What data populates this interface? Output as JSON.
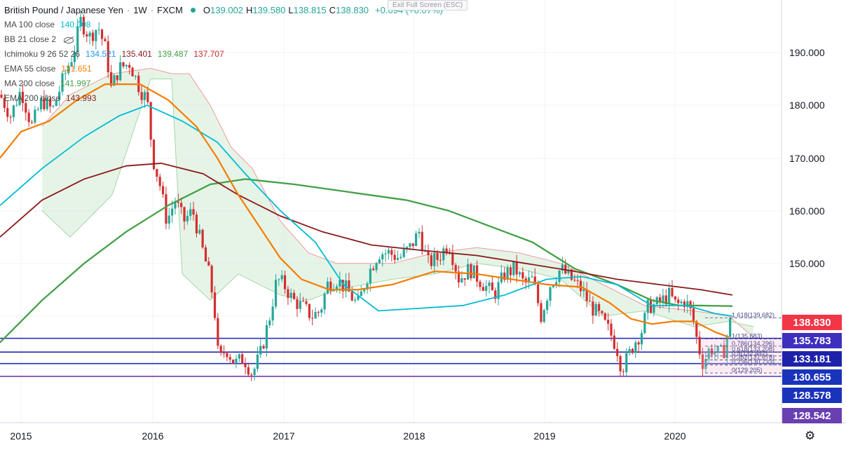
{
  "header": {
    "symbol": "British Pound / Japanese Yen",
    "interval": "1W",
    "exchange": "FXCM",
    "ohlc": [
      {
        "label": "O",
        "value": "139.002"
      },
      {
        "label": "H",
        "value": "139.580"
      },
      {
        "label": "L",
        "value": "138.815"
      },
      {
        "label": "C",
        "value": "138.830"
      }
    ],
    "change": "+0.094 (+0.07%)"
  },
  "exit_fullscreen": "Exit Full Screen (ESC)",
  "indicators": [
    {
      "name": "MA 100 close",
      "values": [
        {
          "v": "140.008",
          "color": "#00bcd4"
        }
      ]
    },
    {
      "name": "BB 21 close 2",
      "values": []
    },
    {
      "name": "Ichimoku 9 26 52 26",
      "values": [
        {
          "v": "134.521",
          "color": "#2196f3"
        },
        {
          "v": "135.401",
          "color": "#8b1a1a"
        },
        {
          "v": "139.487",
          "color": "#43a047"
        },
        {
          "v": "137.707",
          "color": "#c62828"
        }
      ]
    },
    {
      "name": "EMA 55 close",
      "values": [
        {
          "v": "131.651",
          "color": "#f57c00"
        }
      ]
    },
    {
      "name": "MA 200 close",
      "values": [
        {
          "v": "141.997",
          "color": "#43a047"
        }
      ]
    },
    {
      "name": "EMA 200 close",
      "values": [
        {
          "v": "143.993",
          "color": "#8b1a1a"
        }
      ]
    }
  ],
  "price_axis": {
    "min": 125.3,
    "max": 198.6,
    "ticks": [
      "190.000",
      "180.000",
      "170.000",
      "160.000",
      "150.000"
    ]
  },
  "time_axis": {
    "labels": [
      "2015",
      "2016",
      "2017",
      "2018",
      "2019",
      "2020"
    ]
  },
  "price_tags": [
    {
      "value": "138.830",
      "color": "#f23645"
    },
    {
      "value": "135.783",
      "color": "#3f2fbf"
    },
    {
      "value": "133.181",
      "color": "#1e22aa"
    },
    {
      "value": "130.655",
      "color": "#1a33bb"
    },
    {
      "value": "128.578",
      "color": "#1a33bb"
    },
    {
      "value": "128.542",
      "color": "#6a3fb2"
    }
  ],
  "fib_levels": [
    {
      "label": "1.618(139.682)",
      "price": 139.682
    },
    {
      "label": "1(135.683)",
      "price": 135.683
    },
    {
      "label": "0.786(134.296)",
      "price": 134.296
    },
    {
      "label": "0.618(133.208)",
      "price": 133.208
    },
    {
      "label": "0.5(132.442)",
      "price": 132.442
    },
    {
      "label": "0.382(131.678)",
      "price": 131.678
    },
    {
      "label": "0.236(130.733)",
      "price": 130.733
    },
    {
      "label": "0(129.205)",
      "price": 129.205
    }
  ],
  "horizontal_lines": [
    {
      "price": 135.783,
      "color": "#2f2fbf"
    },
    {
      "price": 133.181,
      "color": "#1e22aa"
    },
    {
      "price": 131.0,
      "color": "#1a33bb"
    },
    {
      "price": 128.578,
      "color": "#6a3fb2"
    }
  ],
  "series": {
    "ma200": {
      "color": "#43a047"
    },
    "ema200": {
      "color": "#8b1a1a"
    },
    "ma100": {
      "color": "#00bcd4"
    },
    "ema55": {
      "color": "#f57c00"
    },
    "candle_up": "#26a69a",
    "candle_down": "#d32f2f"
  },
  "gear_icon": "gear-icon"
}
